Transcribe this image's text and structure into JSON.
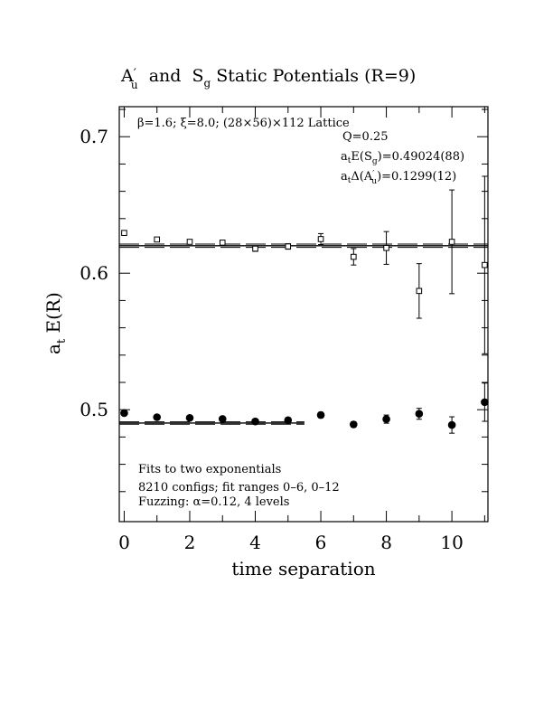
{
  "chart_data": {
    "type": "scatter",
    "title": "A′u and Sg Static Potentials (R=9)",
    "title_parts": {
      "a": "A",
      "a_prime": "′",
      "a_sub": "u",
      "and": "and",
      "s": "S",
      "s_sub": "g",
      "rest": "Static Potentials (R=9)"
    },
    "xlabel": "time separation",
    "ylabel": "a_t E(R)",
    "ylabel_parts": {
      "a": "a",
      "a_sub": "t",
      "rest": "E(R)"
    },
    "xlim": [
      -0.15,
      11.1
    ],
    "ylim": [
      0.418,
      0.722
    ],
    "x_ticks": [
      0,
      2,
      4,
      6,
      8,
      10
    ],
    "x_tick_labels": [
      "0",
      "2",
      "4",
      "6",
      "8",
      "10"
    ],
    "y_ticks": [
      0.5,
      0.6,
      0.7
    ],
    "y_tick_labels": [
      "0.5",
      "0.6",
      "0.7"
    ],
    "grid": false,
    "annotations": {
      "lattice": "β=1.6; ξ=8.0; (28×56)×112 Lattice",
      "q": "Q=0.25",
      "energy": {
        "prefix": "a",
        "prefix_sub": "t",
        "mid": "E(S",
        "mid_sub": "g",
        "suffix": ")=0.49024(88)"
      },
      "gap": {
        "prefix": "a",
        "prefix_sub": "t",
        "mid": "Δ(A",
        "mid_sub": "u",
        "mid_prime": "′",
        "suffix": ")=0.1299(12)"
      },
      "fits": "Fits to two exponentials",
      "configs": "8210 configs; fit ranges 0–6, 0–12",
      "fuzzing": "Fuzzing: α=0.12, 4 levels"
    },
    "series": [
      {
        "marker": "filled-circle",
        "points": [
          {
            "x": 0,
            "y": 0.4975,
            "err": 0
          },
          {
            "x": 1,
            "y": 0.4945,
            "err": 0
          },
          {
            "x": 2,
            "y": 0.494,
            "err": 0
          },
          {
            "x": 3,
            "y": 0.4932,
            "err": 0
          },
          {
            "x": 4,
            "y": 0.4914,
            "err": 0
          },
          {
            "x": 5,
            "y": 0.4923,
            "err": 0
          },
          {
            "x": 6,
            "y": 0.4961,
            "err": 0.002
          },
          {
            "x": 7,
            "y": 0.4892,
            "err": 0.002
          },
          {
            "x": 8,
            "y": 0.4931,
            "err": 0.003
          },
          {
            "x": 9,
            "y": 0.497,
            "err": 0.004
          },
          {
            "x": 10,
            "y": 0.4888,
            "err": 0.006
          },
          {
            "x": 11,
            "y": 0.5055,
            "err": 0.014
          }
        ],
        "fit": {
          "value": 0.49024,
          "error": 0.00088,
          "x_range": [
            -0.15,
            5.5
          ]
        }
      },
      {
        "marker": "open-square",
        "points": [
          {
            "x": 0,
            "y": 0.6295,
            "err": 0
          },
          {
            "x": 1,
            "y": 0.6247,
            "err": 0
          },
          {
            "x": 2,
            "y": 0.623,
            "err": 0
          },
          {
            "x": 3,
            "y": 0.6224,
            "err": 0
          },
          {
            "x": 4,
            "y": 0.618,
            "err": 0.002
          },
          {
            "x": 5,
            "y": 0.6196,
            "err": 0.002
          },
          {
            "x": 6,
            "y": 0.625,
            "err": 0.004
          },
          {
            "x": 7,
            "y": 0.612,
            "err": 0.006
          },
          {
            "x": 8,
            "y": 0.6185,
            "err": 0.012
          },
          {
            "x": 9,
            "y": 0.587,
            "err": 0.02
          },
          {
            "x": 10,
            "y": 0.623,
            "err": 0.038
          },
          {
            "x": 11,
            "y": 0.606,
            "err": 0.065
          }
        ],
        "fit": {
          "value": 0.62014,
          "error": 0.0012,
          "x_range": [
            -0.15,
            11.1
          ]
        }
      }
    ]
  }
}
